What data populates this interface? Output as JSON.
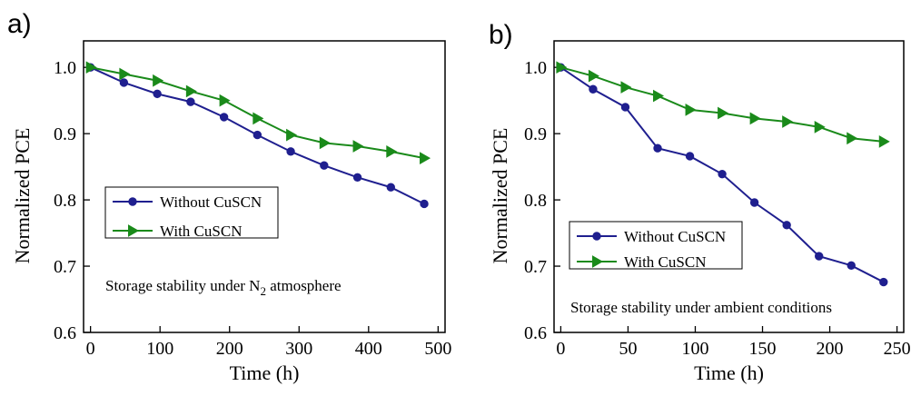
{
  "chart_data": [
    {
      "type": "line",
      "panel_label": "a)",
      "xlabel": "Time (h)",
      "ylabel": "Normalized PCE",
      "xlim": [
        -10,
        510
      ],
      "ylim": [
        0.6,
        1.04
      ],
      "xticks": [
        0,
        100,
        200,
        300,
        400,
        500
      ],
      "yticks": [
        0.6,
        0.7,
        0.8,
        0.9,
        1.0
      ],
      "xtick_labels": [
        "0",
        "100",
        "200",
        "300",
        "400",
        "500"
      ],
      "ytick_labels": [
        "0.6",
        "0.7",
        "0.8",
        "0.9",
        "1.0"
      ],
      "grid": false,
      "legend_position": "center-left",
      "annotation": {
        "text": "Storage stability under N",
        "sub": "2",
        "tail": " atmosphere"
      },
      "series": [
        {
          "name": "Without CuSCN",
          "color": "#1f1f8f",
          "marker": "circle",
          "x": [
            0,
            48,
            96,
            144,
            192,
            240,
            288,
            336,
            384,
            432,
            480
          ],
          "y": [
            1.0,
            0.977,
            0.96,
            0.948,
            0.925,
            0.898,
            0.873,
            0.852,
            0.834,
            0.819,
            0.794
          ]
        },
        {
          "name": "With CuSCN",
          "color": "#1a8a1a",
          "marker": "triangle-right",
          "x": [
            0,
            48,
            96,
            144,
            192,
            240,
            288,
            336,
            384,
            432,
            480
          ],
          "y": [
            1.0,
            0.99,
            0.98,
            0.964,
            0.95,
            0.923,
            0.898,
            0.886,
            0.881,
            0.873,
            0.863
          ]
        }
      ]
    },
    {
      "type": "line",
      "panel_label": "b)",
      "xlabel": "Time (h)",
      "ylabel": "Normalized PCE",
      "xlim": [
        -5,
        255
      ],
      "ylim": [
        0.6,
        1.04
      ],
      "xticks": [
        0,
        50,
        100,
        150,
        200,
        250
      ],
      "yticks": [
        0.6,
        0.7,
        0.8,
        0.9,
        1.0
      ],
      "xtick_labels": [
        "0",
        "50",
        "100",
        "150",
        "200",
        "250"
      ],
      "ytick_labels": [
        "0.6",
        "0.7",
        "0.8",
        "0.9",
        "1.0"
      ],
      "grid": false,
      "legend_position": "lower-left",
      "annotation": {
        "text": "Storage stability under ambient conditions",
        "sub": "",
        "tail": ""
      },
      "series": [
        {
          "name": "Without CuSCN",
          "color": "#1f1f8f",
          "marker": "circle",
          "x": [
            0,
            24,
            48,
            72,
            96,
            120,
            144,
            168,
            192,
            216,
            240
          ],
          "y": [
            1.0,
            0.967,
            0.94,
            0.878,
            0.866,
            0.839,
            0.796,
            0.762,
            0.715,
            0.701,
            0.676
          ]
        },
        {
          "name": "With CuSCN",
          "color": "#1a8a1a",
          "marker": "triangle-right",
          "x": [
            0,
            24,
            48,
            72,
            96,
            120,
            144,
            168,
            192,
            216,
            240
          ],
          "y": [
            1.0,
            0.987,
            0.97,
            0.957,
            0.936,
            0.931,
            0.923,
            0.918,
            0.91,
            0.893,
            0.888
          ]
        }
      ]
    }
  ]
}
